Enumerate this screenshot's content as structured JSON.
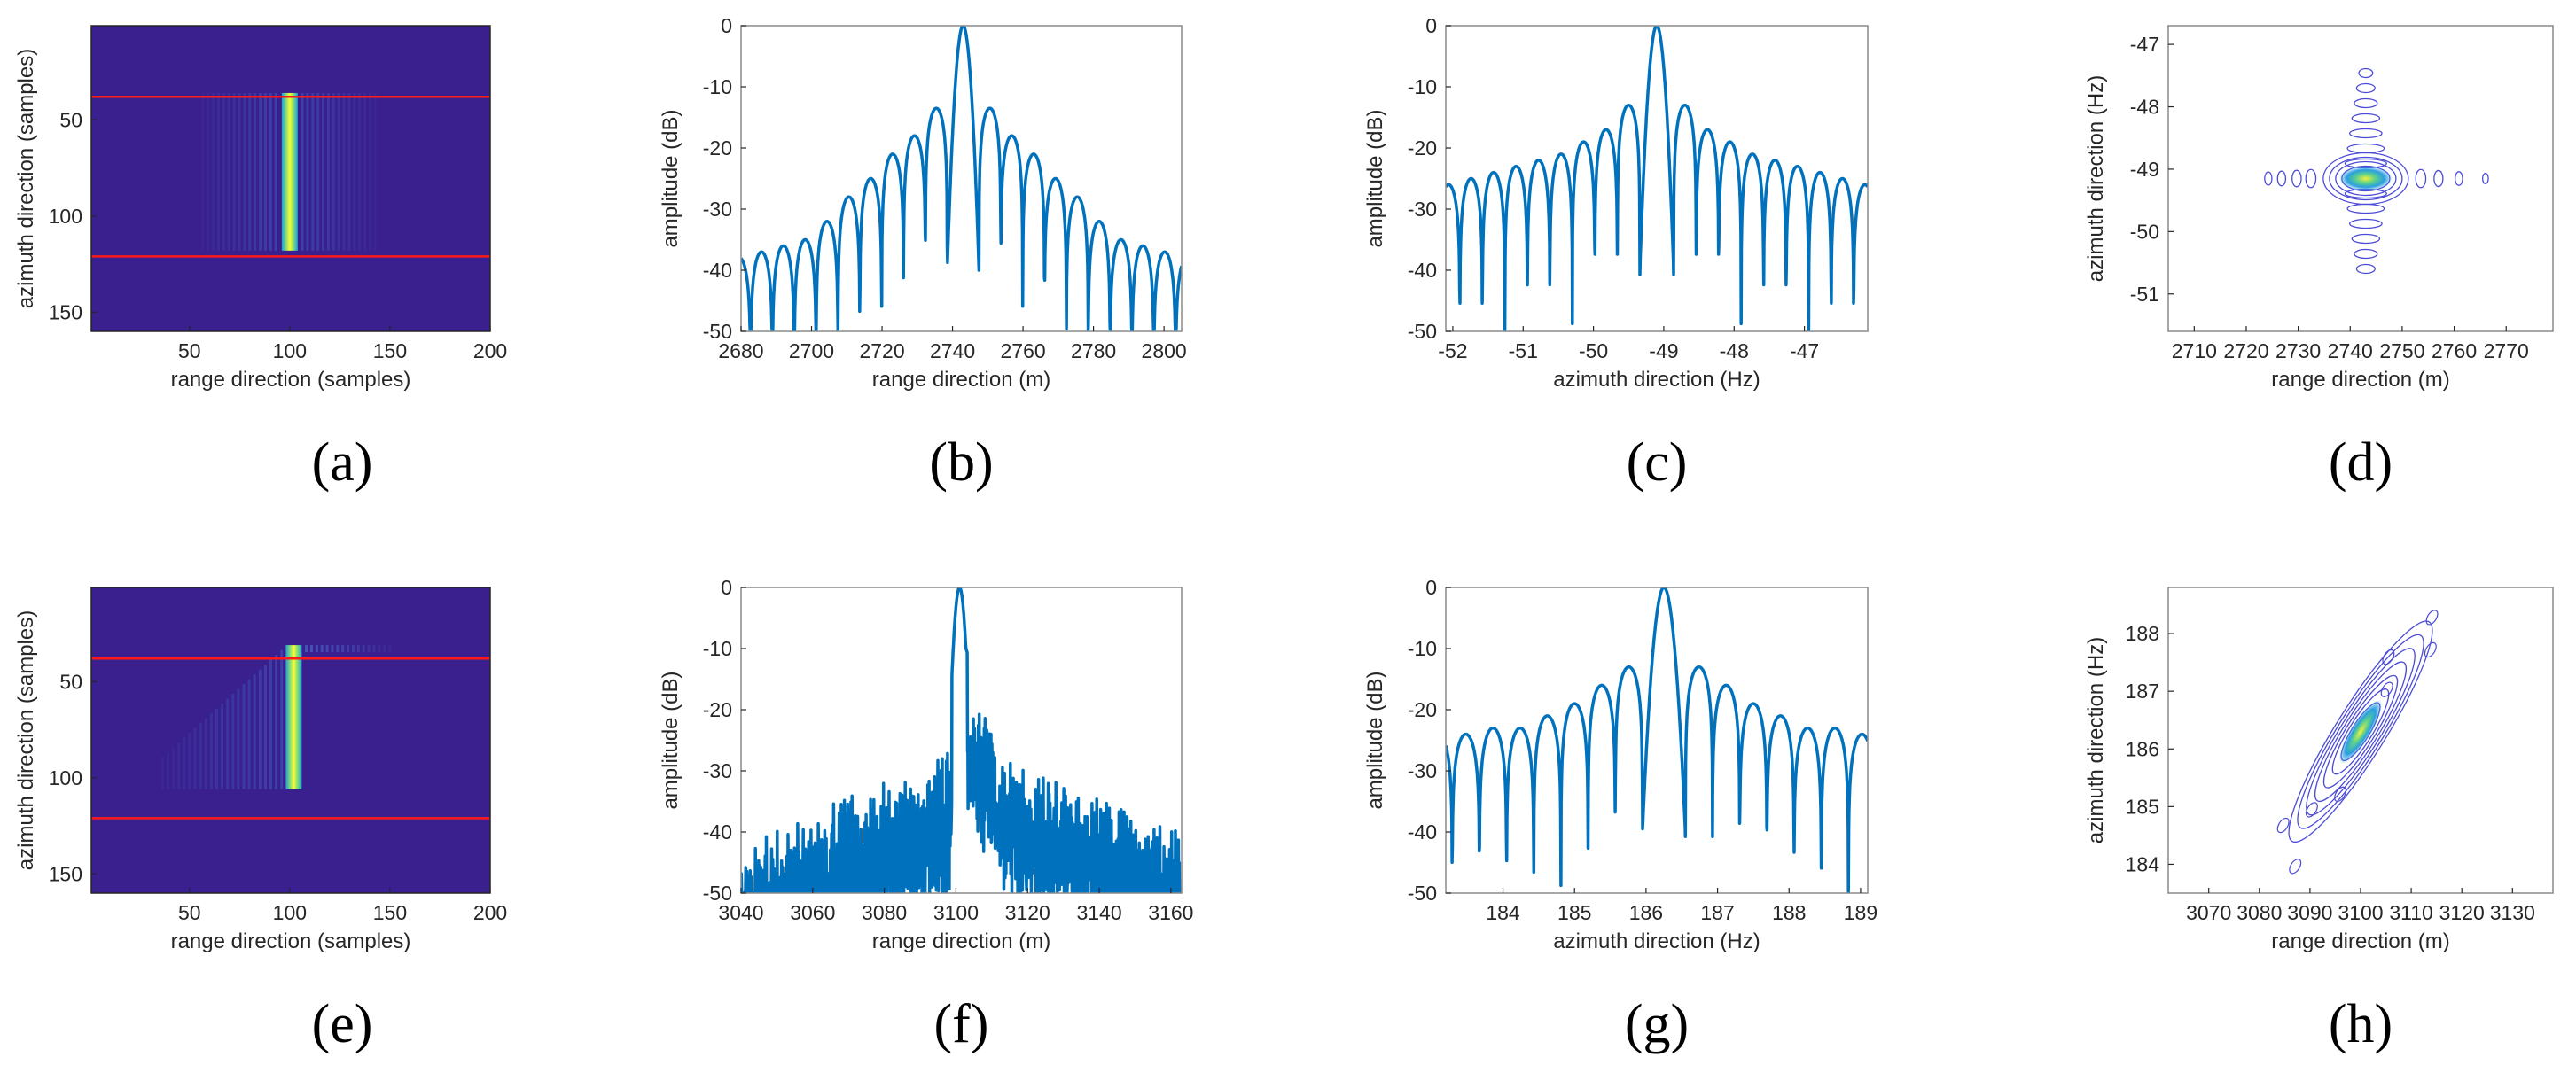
{
  "figure": {
    "colors": {
      "line": "#0072BD",
      "axis": "#262626",
      "red_line": "#ff1a1a",
      "bg_map": "#3a1f8e",
      "contour": "#4b4bd8"
    },
    "panels_note": "8 subplots in 2 rows"
  },
  "chart_data": [
    {
      "id": "a",
      "caption": "(a)",
      "type": "heatmap",
      "xlabel": "range direction (samples)",
      "ylabel": "azimuth direction (samples)",
      "xlim": [
        1,
        200
      ],
      "ylim": [
        160,
        1
      ],
      "xticks": [
        "50",
        "100",
        "150",
        "200"
      ],
      "yticks": [
        "50",
        "100",
        "150"
      ],
      "xtick_values": [
        50,
        100,
        150,
        200
      ],
      "ytick_values": [
        50,
        100,
        150
      ],
      "red_lines_y": [
        38,
        121
      ],
      "target": {
        "x_center": 100,
        "y_start": 36,
        "y_end": 118
      }
    },
    {
      "id": "b",
      "caption": "(b)",
      "type": "line",
      "xlabel": "range direction (m)",
      "ylabel": "amplitude (dB)",
      "xlim": [
        2680,
        2805
      ],
      "ylim": [
        -50,
        0
      ],
      "xticks": [
        "2680",
        "2700",
        "2720",
        "2740",
        "2760",
        "2780",
        "2800"
      ],
      "yticks": [
        "0",
        "-10",
        "-20",
        "-30",
        "-40",
        "-50"
      ],
      "xtick_values": [
        2680,
        2700,
        2720,
        2740,
        2760,
        2780,
        2800
      ],
      "ytick_values": [
        0,
        -10,
        -20,
        -30,
        -40,
        -50
      ],
      "signal": {
        "center": 2743,
        "lobe_width": 6.2,
        "peak_halfwidth": 4.5,
        "sidelobes": [
          -13.5,
          -18,
          -21,
          -25,
          -28,
          -32,
          -35,
          -36,
          -37,
          -38,
          -39,
          -40,
          -40,
          -41,
          -41,
          -41,
          -41,
          -41,
          -41,
          -41
        ]
      }
    },
    {
      "id": "c",
      "caption": "(c)",
      "type": "line",
      "xlabel": "azimuth direction (Hz)",
      "ylabel": "amplitude (dB)",
      "xlim": [
        -52.1,
        -46.1
      ],
      "ylim": [
        -50,
        0
      ],
      "xticks": [
        "-52",
        "-51",
        "-50",
        "-49",
        "-48",
        "-47"
      ],
      "yticks": [
        "0",
        "-10",
        "-20",
        "-30",
        "-40",
        "-50"
      ],
      "xtick_values": [
        -52,
        -51,
        -50,
        -49,
        -48,
        -47
      ],
      "ytick_values": [
        0,
        -10,
        -20,
        -30,
        -40,
        -50
      ],
      "signal": {
        "center": -49.1,
        "lobe_width": 0.32,
        "peak_halfwidth": 0.24,
        "sidelobes": [
          -13,
          -17,
          -19,
          -21,
          -22,
          -23,
          -24,
          -25,
          -26,
          -27,
          -27,
          -28,
          -28,
          -28,
          -29,
          -29,
          -29,
          -29,
          -29,
          -29,
          -29
        ]
      }
    },
    {
      "id": "d",
      "caption": "(d)",
      "type": "contour",
      "xlabel": "range direction (m)",
      "ylabel": "azimuth direction (Hz)",
      "xlim": [
        2705,
        2779
      ],
      "ylim": [
        -51.6,
        -46.7
      ],
      "xticks": [
        "2710",
        "2720",
        "2730",
        "2740",
        "2750",
        "2760",
        "2770"
      ],
      "yticks": [
        "-47",
        "-48",
        "-49",
        "-50",
        "-51"
      ],
      "xtick_values": [
        2710,
        2720,
        2730,
        2740,
        2750,
        2760,
        2770
      ],
      "ytick_values": [
        -47,
        -48,
        -49,
        -50,
        -51
      ],
      "target": {
        "x": 2743,
        "y": -49.15,
        "tilted": false
      }
    },
    {
      "id": "e",
      "caption": "(e)",
      "type": "heatmap",
      "xlabel": "range direction (samples)",
      "ylabel": "azimuth direction (samples)",
      "xlim": [
        1,
        200
      ],
      "ylim": [
        160,
        1
      ],
      "xticks": [
        "50",
        "100",
        "150",
        "200"
      ],
      "yticks": [
        "50",
        "100",
        "150"
      ],
      "xtick_values": [
        50,
        100,
        150,
        200
      ],
      "ytick_values": [
        50,
        100,
        150
      ],
      "red_lines_y": [
        38,
        121
      ],
      "target": {
        "x_center": 102,
        "y_start": 31,
        "y_end": 106,
        "skewed": true
      }
    },
    {
      "id": "f",
      "caption": "(f)",
      "type": "line",
      "xlabel": "range direction (m)",
      "ylabel": "amplitude (dB)",
      "xlim": [
        3040,
        3163
      ],
      "ylim": [
        -50,
        0
      ],
      "xticks": [
        "3040",
        "3060",
        "3080",
        "3100",
        "3120",
        "3140",
        "3160"
      ],
      "yticks": [
        "0",
        "-10",
        "-20",
        "-30",
        "-40",
        "-50"
      ],
      "xtick_values": [
        3040,
        3060,
        3080,
        3100,
        3120,
        3140,
        3160
      ],
      "ytick_values": [
        0,
        -10,
        -20,
        -30,
        -40,
        -50
      ],
      "signal": {
        "center": 3101,
        "noisy": true
      }
    },
    {
      "id": "g",
      "caption": "(g)",
      "type": "line",
      "xlabel": "azimuth direction (Hz)",
      "ylabel": "amplitude (dB)",
      "xlim": [
        183.2,
        189.1
      ],
      "ylim": [
        -50,
        0
      ],
      "xticks": [
        "184",
        "185",
        "186",
        "187",
        "188",
        "189"
      ],
      "yticks": [
        "0",
        "-10",
        "-20",
        "-30",
        "-40",
        "-50"
      ],
      "xtick_values": [
        184,
        185,
        186,
        187,
        188,
        189
      ],
      "ytick_values": [
        0,
        -10,
        -20,
        -30,
        -40,
        -50
      ],
      "signal": {
        "center": 186.25,
        "lobe_width": 0.38,
        "peak_halfwidth": 0.3,
        "sidelobes": [
          -13,
          -16,
          -19,
          -21,
          -23,
          -23,
          -24,
          -24,
          -25,
          -26,
          -26,
          -27,
          -28,
          -28,
          -28
        ]
      }
    },
    {
      "id": "h",
      "caption": "(h)",
      "type": "contour",
      "xlabel": "range direction (m)",
      "ylabel": "azimuth direction (Hz)",
      "xlim": [
        3062,
        3138
      ],
      "ylim": [
        183.5,
        188.8
      ],
      "xticks": [
        "3070",
        "3080",
        "3090",
        "3100",
        "3110",
        "3120",
        "3130"
      ],
      "yticks": [
        "184",
        "185",
        "186",
        "187",
        "188"
      ],
      "xtick_values": [
        3070,
        3080,
        3090,
        3100,
        3110,
        3120,
        3130
      ],
      "ytick_values": [
        184,
        185,
        186,
        187,
        188
      ],
      "target": {
        "x": 3100,
        "y": 186.3,
        "tilted": true
      }
    }
  ]
}
